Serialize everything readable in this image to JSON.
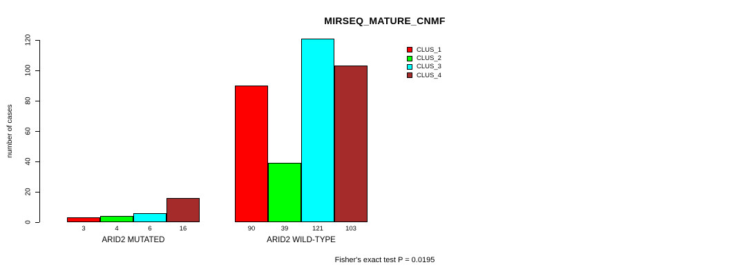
{
  "chart_data": {
    "type": "bar",
    "title": "MIRSEQ_MATURE_CNMF",
    "ylabel": "number of cases",
    "xlabel": "",
    "ylim": [
      0,
      120
    ],
    "yticks": [
      0,
      20,
      40,
      60,
      80,
      100,
      120
    ],
    "grid": false,
    "legend_position": "right",
    "annotation": "Fisher's exact test P = 0.0195",
    "series_colors": [
      "#ff0000",
      "#00ff00",
      "#00ffff",
      "#a52a2a"
    ],
    "groups": [
      {
        "label": "ARID2 MUTATED",
        "values": [
          3,
          4,
          6,
          16
        ]
      },
      {
        "label": "ARID2 WILD-TYPE",
        "values": [
          90,
          39,
          121,
          103
        ]
      }
    ],
    "legend": [
      {
        "label": "CLUS_1",
        "color": "#ff0000"
      },
      {
        "label": "CLUS_2",
        "color": "#00ff00"
      },
      {
        "label": "CLUS_3",
        "color": "#00ffff"
      },
      {
        "label": "CLUS_4",
        "color": "#a52a2a"
      }
    ]
  },
  "colors": {
    "axis": "#000000",
    "background": "#ffffff",
    "text": "#000000"
  }
}
